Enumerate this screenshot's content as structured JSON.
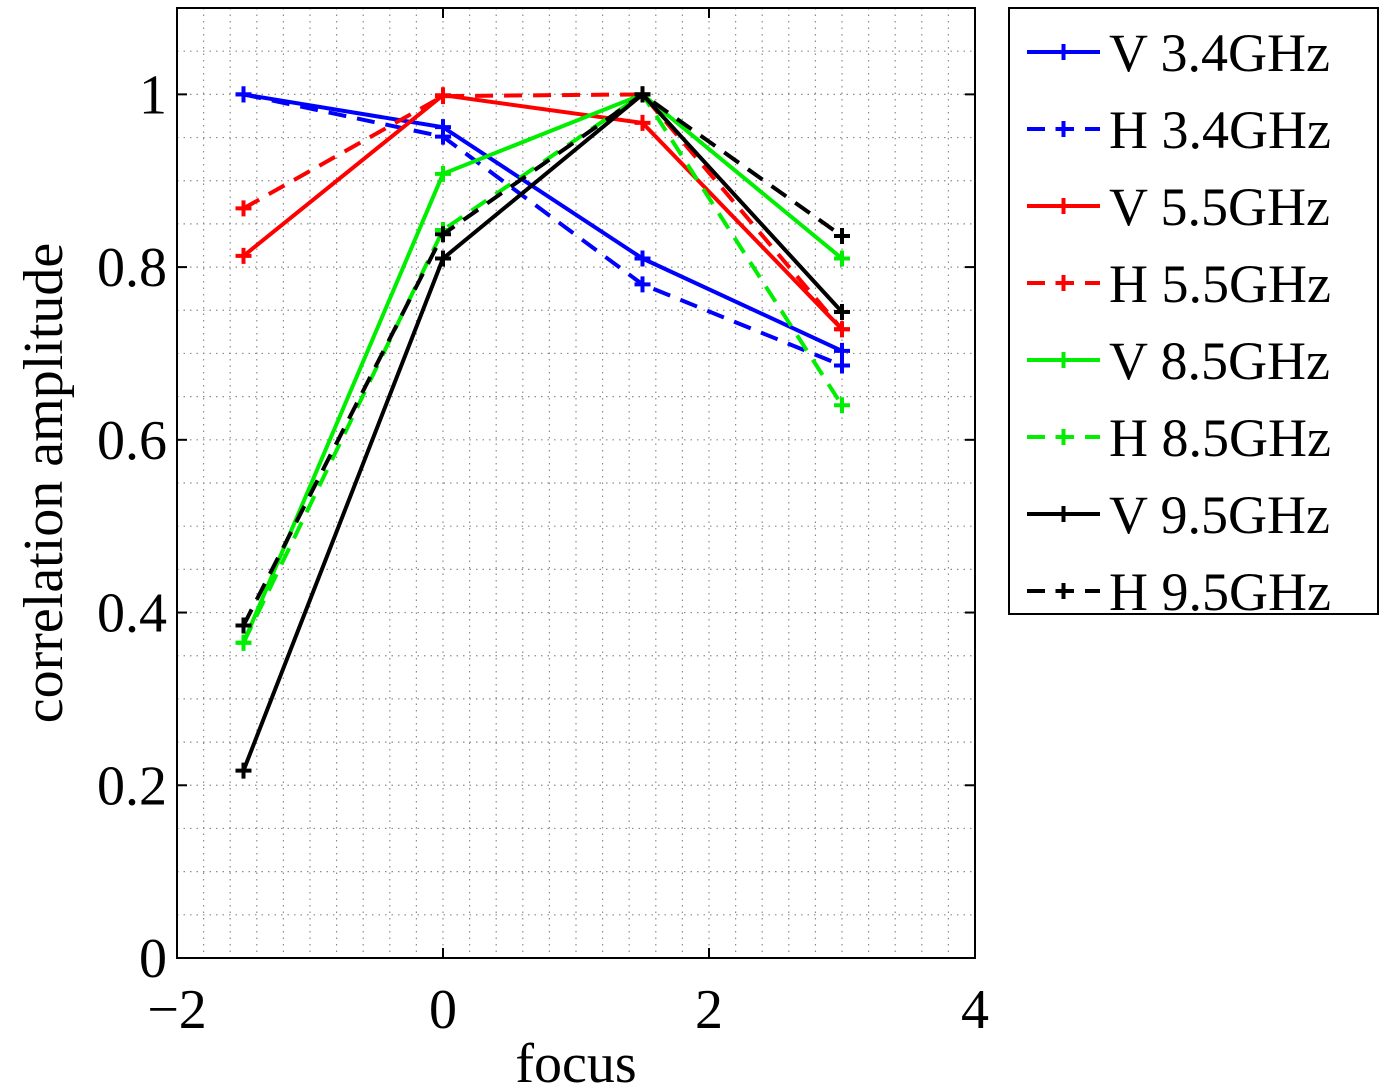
{
  "chart_data": {
    "type": "line",
    "xlabel": "focus",
    "ylabel": "correlation amplitude",
    "xlim": [
      -2,
      4
    ],
    "ylim": [
      0,
      1.1
    ],
    "xticks": [
      -2,
      0,
      2,
      4
    ],
    "xtick_labels": [
      "−2",
      "0",
      "2",
      "4"
    ],
    "yticks": [
      0,
      0.2,
      0.4,
      0.6,
      0.8,
      1
    ],
    "ytick_labels": [
      "0",
      "0.2",
      "0.4",
      "0.6",
      "0.8",
      "1"
    ],
    "grid": "minor dotted",
    "legend_position": "outside top-right",
    "x": [
      -1.5,
      0,
      1.5,
      3
    ],
    "series": [
      {
        "name": "V 3.4GHz",
        "color": "#0000ff",
        "dash": "solid",
        "values": [
          1.0,
          0.962,
          0.81,
          0.703
        ]
      },
      {
        "name": "H 3.4GHz",
        "color": "#0000ff",
        "dash": "dashed",
        "values": [
          1.0,
          0.951,
          0.78,
          0.686
        ]
      },
      {
        "name": "V 5.5GHz",
        "color": "#ff0000",
        "dash": "solid",
        "values": [
          0.813,
          0.999,
          0.967,
          0.728
        ]
      },
      {
        "name": "H 5.5GHz",
        "color": "#ff0000",
        "dash": "dashed",
        "values": [
          0.868,
          0.998,
          1.0,
          0.728
        ]
      },
      {
        "name": "V 8.5GHz",
        "color": "#00ee00",
        "dash": "solid",
        "values": [
          0.365,
          0.908,
          1.0,
          0.81
        ]
      },
      {
        "name": "H 8.5GHz",
        "color": "#00ee00",
        "dash": "dashed",
        "values": [
          0.365,
          0.843,
          1.0,
          0.64
        ]
      },
      {
        "name": "V 9.5GHz",
        "color": "#000000",
        "dash": "solid",
        "values": [
          0.217,
          0.81,
          1.0,
          0.748
        ]
      },
      {
        "name": "H 9.5GHz",
        "color": "#000000",
        "dash": "dashed",
        "values": [
          0.385,
          0.838,
          1.0,
          0.836
        ]
      }
    ]
  }
}
